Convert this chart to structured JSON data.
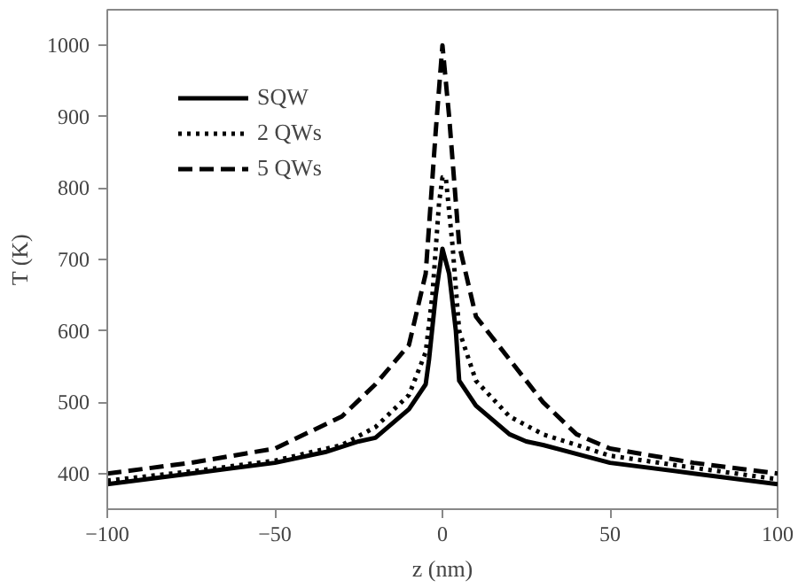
{
  "chart_data": {
    "type": "line",
    "xlabel": "z (nm)",
    "ylabel": "T (K)",
    "xlim": [
      -100,
      100
    ],
    "xticks": [
      -100,
      -50,
      0,
      50,
      100
    ],
    "ylim": [
      350,
      1050
    ],
    "yticks": [
      400,
      500,
      600,
      700,
      800,
      900,
      1000
    ],
    "grid": false,
    "legend": "top left",
    "marker": "none",
    "series": [
      {
        "name": "SQW",
        "color": "#000000",
        "line_style": "solid",
        "x": [
          -100,
          -75,
          -50,
          -35,
          -25,
          -20,
          -10,
          -5,
          -4,
          -2,
          0,
          2,
          4,
          5,
          10,
          20,
          25,
          30,
          50,
          75,
          100
        ],
        "values": [
          385,
          400,
          415,
          430,
          445,
          450,
          490,
          525,
          560,
          650,
          715,
          680,
          600,
          530,
          495,
          455,
          445,
          440,
          415,
          400,
          385
        ]
      },
      {
        "name": "2 QWs",
        "color": "#000000",
        "line_style": "dotted",
        "x": [
          -100,
          -75,
          -50,
          -30,
          -20,
          -10,
          -5,
          -3,
          -1,
          0,
          1,
          3,
          5,
          10,
          20,
          30,
          50,
          75,
          100
        ],
        "values": [
          390,
          403,
          418,
          440,
          465,
          510,
          570,
          650,
          780,
          815,
          815,
          720,
          600,
          530,
          480,
          455,
          425,
          408,
          392
        ]
      },
      {
        "name": "5 QWs",
        "color": "#000000",
        "line_style": "dashed",
        "x": [
          -100,
          -75,
          -50,
          -30,
          -20,
          -10,
          -5,
          -2,
          0,
          2,
          5,
          10,
          20,
          30,
          40,
          50,
          75,
          100
        ],
        "values": [
          400,
          415,
          435,
          480,
          525,
          580,
          680,
          880,
          1000,
          900,
          720,
          620,
          560,
          500,
          455,
          435,
          415,
          400
        ]
      }
    ]
  }
}
